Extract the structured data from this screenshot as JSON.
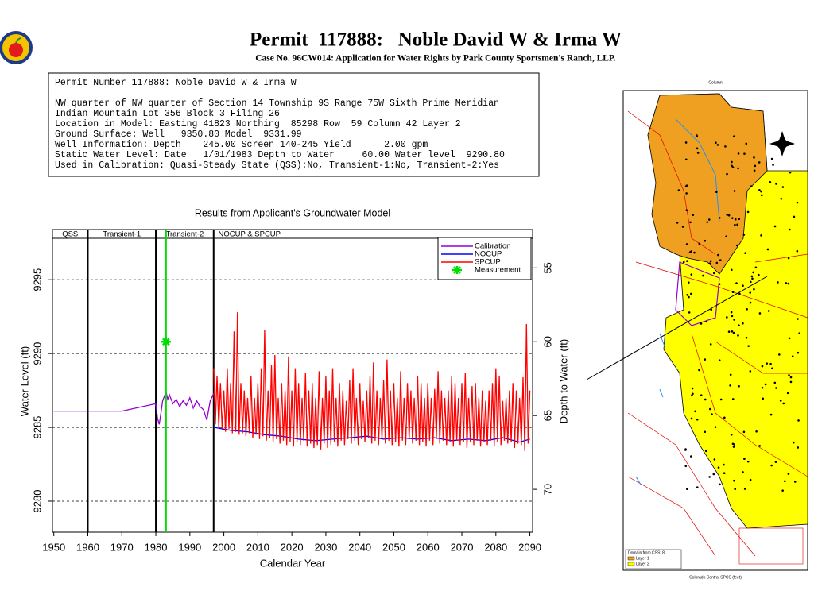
{
  "header": {
    "title": "Permit  117888:   Noble David W & Irma W",
    "subtitle": "Case No. 96CW014: Application for Water Rights by Park County Sportsmen's Ranch, LLP."
  },
  "info": {
    "lines": [
      "Permit Number 117888: Noble David W & Irma W",
      "NW quarter of NW quarter of Section 14 Township 9S Range 75W Sixth Prime Meridian",
      "Indian Mountain Lot 356 Block 3 Filing 26",
      "Location in Model: Easting 41823 Northing  85298 Row  59 Column 42 Layer 2",
      "Ground Surface: Well   9350.80 Model  9331.99",
      "Well Information: Depth    245.00 Screen 140-245 Yield      2.00 gpm",
      "Static Water Level: Date   1/01/1983 Depth to Water     60.00 Water level  9290.80",
      "Used in Calibration: Quasi-Steady State (QSS):No, Transient-1:No, Transient-2:Yes"
    ]
  },
  "map": {
    "legend_title": "Domain from CSS18",
    "legend_items": [
      "Layer 1",
      "Layer 2"
    ],
    "x_label": "Colorado Central SPCS (feet)",
    "top_label": "Column"
  },
  "chart_data": {
    "type": "line",
    "title": "Results from Applicant's Groundwater Model",
    "x_label": "Calendar Year",
    "y_label": "Water Level (ft)",
    "y2_label": "Depth to Water (ft)",
    "xlim": [
      1949.6,
      2090.8
    ],
    "xticks": [
      1950,
      1960,
      1970,
      1980,
      1990,
      2000,
      2010,
      2020,
      2030,
      2040,
      2050,
      2060,
      2070,
      2080,
      2090
    ],
    "ylim": [
      9277.9,
      9298.4
    ],
    "yticks": [
      9280,
      9285,
      9290,
      9295
    ],
    "y2lim": [
      72.9,
      52.4
    ],
    "y2ticks": [
      55,
      60,
      65,
      70
    ],
    "grid": true,
    "phases": [
      "QSS",
      "Transient-1",
      "Transient-2",
      "NOCUP & SPCUP"
    ],
    "phase_lines": [
      1960,
      1980,
      1997
    ],
    "series": [
      {
        "name": "Calibration",
        "color": "#9400d3",
        "x": [
          1950,
          1970,
          1980,
          1980.5,
          1981,
          1981.5,
          1982,
          1983,
          1983.5,
          1984,
          1985,
          1986,
          1987,
          1988,
          1989,
          1990,
          1991,
          1992,
          1993,
          1994,
          1995,
          1996,
          1997
        ],
        "values": [
          9286.1,
          9286.1,
          9286.6,
          9285.6,
          9285.2,
          9286.0,
          9286.8,
          9287.4,
          9286.9,
          9287.2,
          9286.6,
          9286.9,
          9286.4,
          9286.8,
          9286.5,
          9287.0,
          9286.3,
          9286.8,
          9286.4,
          9286.2,
          9285.5,
          9286.8,
          9287.3
        ]
      },
      {
        "name": "NOCUP",
        "color": "#0000ff",
        "x": [
          1997,
          2002,
          2007,
          2012,
          2017,
          2022,
          2027,
          2032,
          2037,
          2042,
          2047,
          2052,
          2057,
          2062,
          2067,
          2072,
          2077,
          2082,
          2087,
          2090
        ],
        "values": [
          9285.0,
          9284.8,
          9284.7,
          9284.5,
          9284.4,
          9284.2,
          9284.1,
          9284.2,
          9284.3,
          9284.4,
          9284.2,
          9284.3,
          9284.2,
          9284.3,
          9284.1,
          9284.2,
          9284.1,
          9284.3,
          9284.0,
          9284.2
        ]
      },
      {
        "name": "SPCUP",
        "color": "#ff0000",
        "x": [
          1997,
          1997.5,
          1998,
          1998.5,
          1999,
          1999.5,
          2000,
          2000.5,
          2001,
          2001.5,
          2002,
          2002.5,
          2003,
          2003.5,
          2004,
          2004.5,
          2005,
          2005.5,
          2006,
          2006.5,
          2007,
          2007.5,
          2008,
          2008.5,
          2009,
          2009.5,
          2010,
          2010.5,
          2011,
          2011.5,
          2012,
          2012.5,
          2013,
          2013.5,
          2014,
          2014.5,
          2015,
          2015.5,
          2016,
          2016.5,
          2017,
          2017.5,
          2018,
          2018.5,
          2019,
          2019.5,
          2020,
          2020.5,
          2021,
          2021.5,
          2022,
          2022.5,
          2023,
          2023.5,
          2024,
          2024.5,
          2025,
          2025.5,
          2026,
          2026.5,
          2027,
          2027.5,
          2028,
          2028.5,
          2029,
          2029.5,
          2030,
          2030.5,
          2031,
          2031.5,
          2032,
          2032.5,
          2033,
          2033.5,
          2034,
          2034.5,
          2035,
          2035.5,
          2036,
          2036.5,
          2037,
          2037.5,
          2038,
          2038.5,
          2039,
          2039.5,
          2040,
          2040.5,
          2041,
          2041.5,
          2042,
          2042.5,
          2043,
          2043.5,
          2044,
          2044.5,
          2045,
          2045.5,
          2046,
          2046.5,
          2047,
          2047.5,
          2048,
          2048.5,
          2049,
          2049.5,
          2050,
          2050.5,
          2051,
          2051.5,
          2052,
          2052.5,
          2053,
          2053.5,
          2054,
          2054.5,
          2055,
          2055.5,
          2056,
          2056.5,
          2057,
          2057.5,
          2058,
          2058.5,
          2059,
          2059.5,
          2060,
          2060.5,
          2061,
          2061.5,
          2062,
          2062.5,
          2063,
          2063.5,
          2064,
          2064.5,
          2065,
          2065.5,
          2066,
          2066.5,
          2067,
          2067.5,
          2068,
          2068.5,
          2069,
          2069.5,
          2070,
          2070.5,
          2071,
          2071.5,
          2072,
          2072.5,
          2073,
          2073.5,
          2074,
          2074.5,
          2075,
          2075.5,
          2076,
          2076.5,
          2077,
          2077.5,
          2078,
          2078.5,
          2079,
          2079.5,
          2080,
          2080.5,
          2081,
          2081.5,
          2082,
          2082.5,
          2083,
          2083.5,
          2084,
          2084.5,
          2085,
          2085.5,
          2086,
          2086.5,
          2087,
          2087.5,
          2088,
          2088.5,
          2089,
          2089.5,
          2090
        ],
        "values": [
          9289.0,
          9285.2,
          9288.5,
          9285.0,
          9288.0,
          9284.8,
          9287.5,
          9284.7,
          9289.0,
          9284.9,
          9288.0,
          9284.6,
          9291.5,
          9284.7,
          9292.8,
          9284.5,
          9288.0,
          9284.6,
          9287.5,
          9284.4,
          9287.0,
          9284.6,
          9288.5,
          9284.3,
          9287.0,
          9284.5,
          9288.0,
          9284.2,
          9289.0,
          9284.4,
          9291.6,
          9284.1,
          9287.5,
          9284.3,
          9289.2,
          9284.0,
          9289.9,
          9284.2,
          9287.0,
          9283.9,
          9288.0,
          9284.1,
          9287.5,
          9283.8,
          9289.8,
          9284.0,
          9287.5,
          9283.7,
          9289.0,
          9284.0,
          9288.0,
          9283.8,
          9287.0,
          9284.1,
          9288.7,
          9283.7,
          9287.5,
          9283.9,
          9288.0,
          9283.6,
          9287.0,
          9283.8,
          9288.8,
          9283.5,
          9287.0,
          9283.9,
          9288.5,
          9283.6,
          9287.5,
          9283.8,
          9289.0,
          9284.0,
          9287.0,
          9283.7,
          9288.0,
          9284.1,
          9287.5,
          9283.8,
          9286.8,
          9284.2,
          9288.2,
          9283.9,
          9289.0,
          9284.1,
          9287.0,
          9283.8,
          9288.0,
          9284.2,
          9286.8,
          9284.0,
          9287.5,
          9284.3,
          9288.5,
          9283.9,
          9289.4,
          9284.1,
          9287.5,
          9283.8,
          9287.0,
          9284.2,
          9288.2,
          9283.9,
          9289.6,
          9284.1,
          9287.5,
          9283.8,
          9288.0,
          9284.0,
          9287.0,
          9283.7,
          9288.8,
          9284.1,
          9287.0,
          9283.8,
          9288.0,
          9284.2,
          9287.5,
          9283.9,
          9287.0,
          9284.1,
          9288.5,
          9283.8,
          9288.0,
          9284.0,
          9287.0,
          9283.7,
          9288.0,
          9284.1,
          9287.0,
          9283.8,
          9287.6,
          9284.2,
          9288.8,
          9283.9,
          9287.5,
          9284.1,
          9287.0,
          9283.8,
          9287.5,
          9284.0,
          9288.5,
          9283.7,
          9288.0,
          9284.1,
          9287.0,
          9283.8,
          9288.0,
          9284.0,
          9288.7,
          9283.6,
          9287.0,
          9284.0,
          9287.8,
          9283.8,
          9288.0,
          9284.1,
          9287.0,
          9283.7,
          9287.5,
          9284.0,
          9286.8,
          9283.8,
          9287.5,
          9284.1,
          9288.0,
          9283.7,
          9289.0,
          9284.0,
          9288.5,
          9283.8,
          9286.8,
          9284.1,
          9287.0,
          9283.9,
          9287.5,
          9284.0,
          9288.0,
          9283.6,
          9287.5,
          9283.9,
          9287.0,
          9283.8,
          9288.4,
          9283.4,
          9292.0,
          9283.9,
          9287.5
        ]
      },
      {
        "name": "Measurement",
        "color": "#00dd00",
        "marker": "star",
        "x": [
          1983
        ],
        "values": [
          9290.8
        ]
      }
    ]
  }
}
